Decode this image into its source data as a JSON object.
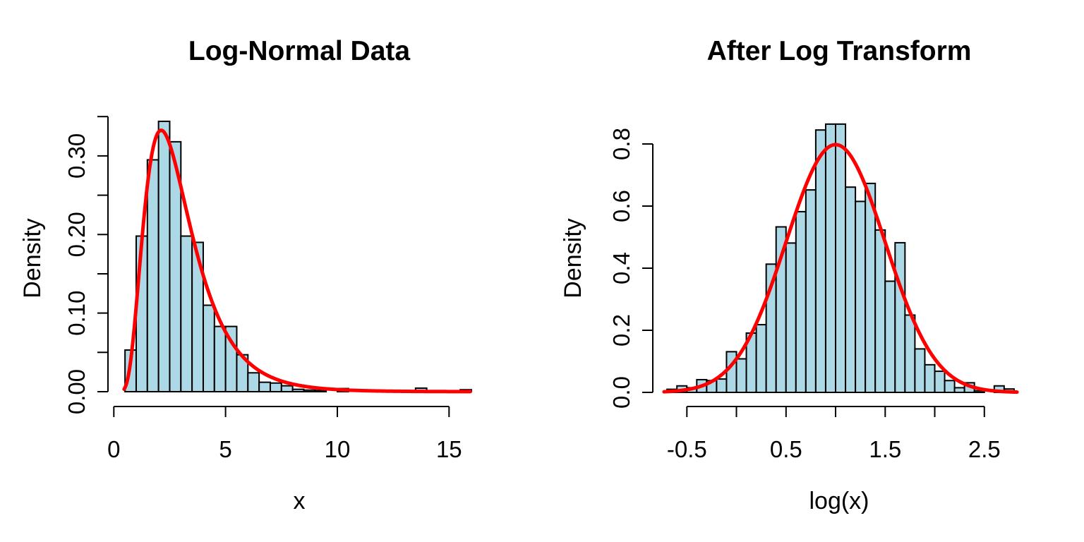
{
  "figure": {
    "background": "#FFFFFF",
    "text_color": "#000000"
  },
  "style": {
    "bar_fill": "#ADD8E6",
    "bar_stroke": "#000000",
    "curve_color": "#FF0000",
    "axis_color": "#000000"
  },
  "chart_data": [
    {
      "type": "bar",
      "subtype": "histogram_with_density_curve",
      "title": "Log-Normal Data",
      "xlabel": "x",
      "ylabel": "Density",
      "bin_width": 0.5,
      "bin_start": [
        0.5,
        1,
        1.5,
        2,
        2.5,
        3,
        3.5,
        4,
        4.5,
        5,
        5.5,
        6,
        6.5,
        7,
        7.5,
        8,
        8.5,
        9,
        9.5,
        10,
        10.5,
        11,
        11.5,
        12,
        12.5,
        13,
        13.5,
        14,
        14.5,
        15,
        15.5
      ],
      "values": [
        0.053,
        0.198,
        0.295,
        0.344,
        0.318,
        0.198,
        0.19,
        0.11,
        0.083,
        0.083,
        0.047,
        0.024,
        0.012,
        0.011,
        0.0075,
        0.003,
        0.002,
        0.0015,
        0,
        0.004,
        0,
        0,
        0,
        0,
        0,
        0,
        0.0045,
        0,
        0,
        0,
        0.0025
      ],
      "x_axis": {
        "range": [
          0,
          16
        ],
        "ticks": [
          0,
          5,
          10,
          15
        ],
        "labels": [
          "0",
          "5",
          "10",
          "15"
        ]
      },
      "y_axis": {
        "range": [
          0,
          0.35
        ],
        "ticks": [
          0,
          0.05,
          0.1,
          0.15,
          0.2,
          0.25,
          0.3,
          0.35
        ],
        "labels": [
          "0.00",
          "",
          "0.10",
          "",
          "0.20",
          "",
          "0.30",
          ""
        ]
      },
      "curve": {
        "distribution": "lognormal",
        "meanlog": 1,
        "sdlog": 0.5,
        "x_range": [
          0.46,
          15.95
        ],
        "peak_x": 2.12,
        "peak_density": 0.333
      },
      "grid": false,
      "legend": false
    },
    {
      "type": "bar",
      "subtype": "histogram_with_density_curve",
      "title": "After Log Transform",
      "xlabel": "log(x)",
      "ylabel": "Density",
      "bin_width": 0.1,
      "bin_start": [
        -0.7,
        -0.6,
        -0.5,
        -0.4,
        -0.3,
        -0.2,
        -0.1,
        0,
        0.1,
        0.2,
        0.3,
        0.4,
        0.5,
        0.6,
        0.7,
        0.8,
        0.9,
        1,
        1.1,
        1.2,
        1.3,
        1.4,
        1.5,
        1.6,
        1.7,
        1.8,
        1.9,
        2,
        2.1,
        2.2,
        2.3,
        2.4,
        2.5,
        2.6,
        2.7
      ],
      "values": [
        0.01,
        0.021,
        0.015,
        0.041,
        0.038,
        0.043,
        0.131,
        0.108,
        0.191,
        0.218,
        0.413,
        0.533,
        0.481,
        0.582,
        0.652,
        0.845,
        0.864,
        0.864,
        0.661,
        0.615,
        0.673,
        0.523,
        0.358,
        0.482,
        0.249,
        0.14,
        0.089,
        0.068,
        0.038,
        0.015,
        0.031,
        0.005,
        0,
        0.021,
        0.011
      ],
      "x_axis": {
        "range": [
          -0.5,
          2.5
        ],
        "ticks": [
          -0.5,
          0,
          0.5,
          1,
          1.5,
          2,
          2.5
        ],
        "labels": [
          "-0.5",
          "",
          "0.5",
          "",
          "1.5",
          "",
          "2.5"
        ]
      },
      "y_axis": {
        "range": [
          0,
          0.8
        ],
        "ticks": [
          0,
          0.2,
          0.4,
          0.6,
          0.8
        ],
        "labels": [
          "0.0",
          "0.2",
          "0.4",
          "0.6",
          "0.8"
        ]
      },
      "curve": {
        "distribution": "normal",
        "mean": 1,
        "sd": 0.5,
        "x_range": [
          -0.73,
          2.83
        ],
        "peak_x": 1.0,
        "peak_density": 0.798
      },
      "grid": false,
      "legend": false
    }
  ]
}
